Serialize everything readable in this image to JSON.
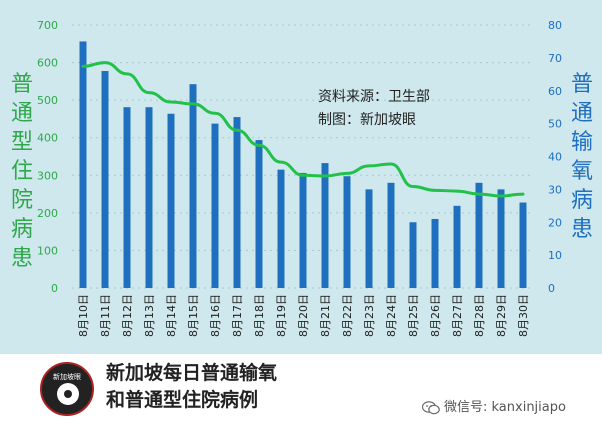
{
  "colors": {
    "background": "#cfe8ee",
    "footer_background": "#ffffff",
    "bar": "#1f6fbf",
    "line": "#22c14a",
    "left_axis_text": "#2ea84a",
    "right_axis_text": "#1f6fbf",
    "grid": "#a8c8cf"
  },
  "chart_data": {
    "type": "bar",
    "title": "新加坡每日普通输氧和普通型住院病例",
    "categories": [
      "8月10日",
      "8月11日",
      "8月12日",
      "8月13日",
      "8月14日",
      "8月15日",
      "8月16日",
      "8月17日",
      "8月18日",
      "8月19日",
      "8月20日",
      "8月21日",
      "8月22日",
      "8月23日",
      "8月24日",
      "8月25日",
      "8月26日",
      "8月27日",
      "8月28日",
      "8月29日",
      "8月30日"
    ],
    "series": [
      {
        "name": "普通输氧",
        "axis": "right",
        "type": "bar",
        "values": [
          75,
          66,
          55,
          55,
          53,
          62,
          50,
          52,
          45,
          36,
          35,
          38,
          34,
          30,
          32,
          20,
          21,
          25,
          32,
          30,
          26
        ]
      },
      {
        "name": "普通型住院病患",
        "axis": "left",
        "type": "line",
        "values": [
          590,
          600,
          570,
          520,
          495,
          490,
          465,
          420,
          380,
          335,
          300,
          298,
          305,
          325,
          330,
          270,
          260,
          258,
          250,
          245,
          250
        ]
      }
    ],
    "y_left": {
      "label": "普通型住院病患",
      "lim": [
        0,
        700
      ],
      "ticks": [
        0,
        100,
        200,
        300,
        400,
        500,
        600,
        700
      ]
    },
    "y_right": {
      "label": "普通输氧病患",
      "lim": [
        0,
        80
      ],
      "ticks": [
        0,
        10,
        20,
        30,
        40,
        50,
        60,
        70,
        80
      ]
    },
    "grid": true,
    "annotations": [
      "资料来源：卫生部",
      "制图：新加坡眼"
    ]
  },
  "footer": {
    "title_line1": "新加坡每日普通输氧",
    "title_line2": "和普通型住院病例",
    "logo_text": "新加坡眼",
    "watermark": "微信号: kanxinjiapo"
  }
}
